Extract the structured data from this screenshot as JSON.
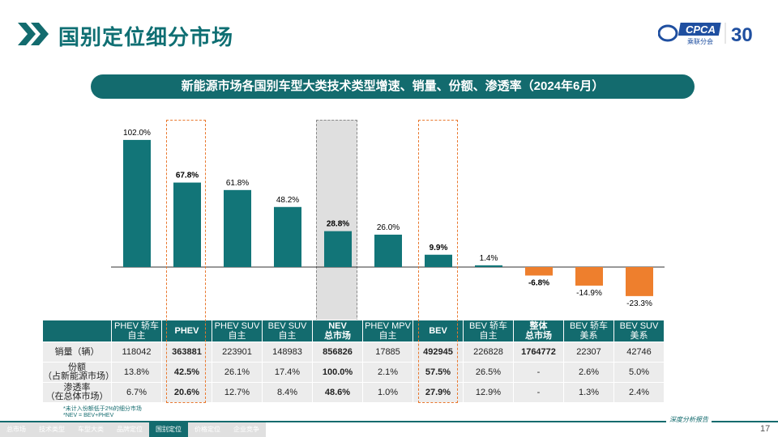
{
  "header": {
    "title": "国别定位细分市场",
    "logo_text": "CPCA",
    "logo_sub": "乘联分会",
    "anniv": "30"
  },
  "banner": "新能源市场各国别车型大类技术类型增速、销量、份额、渗透率（2024年6月）",
  "chart_data": {
    "type": "bar",
    "categories": [
      "PHEV 轿车 自主",
      "PHEV",
      "PHEV SUV 自主",
      "BEV SUV 自主",
      "NEV 总市场",
      "PHEV MPV 自主",
      "BEV",
      "BEV 轿车 自主",
      "整体 总市场",
      "BEV 轿车 美系",
      "BEV SUV 美系"
    ],
    "values": [
      102.0,
      67.8,
      61.8,
      48.2,
      28.8,
      26.0,
      9.9,
      1.4,
      -6.8,
      -14.9,
      -23.3
    ],
    "labels": [
      "102.0%",
      "67.8%",
      "61.8%",
      "48.2%",
      "28.8%",
      "26.0%",
      "9.9%",
      "1.4%",
      "-6.8%",
      "-14.9%",
      "-23.3%"
    ],
    "bold": [
      false,
      true,
      false,
      false,
      true,
      false,
      true,
      false,
      true,
      false,
      false
    ],
    "colors": {
      "positive": "#127578",
      "negative": "#ee7f2d"
    }
  },
  "table": {
    "headers": [
      [
        "PHEV 轿车",
        "自主"
      ],
      [
        "PHEV",
        ""
      ],
      [
        "PHEV  SUV",
        "自主"
      ],
      [
        "BEV SUV",
        "自主"
      ],
      [
        "NEV",
        "总市场"
      ],
      [
        "PHEV  MPV",
        "自主"
      ],
      [
        "BEV",
        ""
      ],
      [
        "BEV 轿车",
        "自主"
      ],
      [
        "整体",
        "总市场"
      ],
      [
        "BEV 轿车",
        "美系"
      ],
      [
        "BEV SUV",
        "美系"
      ]
    ],
    "row_labels": [
      [
        "销量（辆）",
        ""
      ],
      [
        "份额",
        "（占新能源市场）"
      ],
      [
        "渗透率",
        "（在总体市场）"
      ]
    ],
    "rows": [
      [
        "118042",
        "363881",
        "223901",
        "148983",
        "856826",
        "17885",
        "492945",
        "226828",
        "1764772",
        "22307",
        "42746"
      ],
      [
        "13.8%",
        "42.5%",
        "26.1%",
        "17.4%",
        "100.0%",
        "2.1%",
        "57.5%",
        "26.5%",
        "-",
        "2.6%",
        "5.0%"
      ],
      [
        "6.7%",
        "20.6%",
        "12.7%",
        "8.4%",
        "48.6%",
        "1.0%",
        "27.9%",
        "12.9%",
        "-",
        "1.3%",
        "2.4%"
      ]
    ]
  },
  "notes": [
    "*未计入份额低于2%的细分市场",
    "*NEV = BEV+PHEV"
  ],
  "nav": [
    "总市场",
    "技术类型",
    "车型大类",
    "品牌定位",
    "国别定位",
    "价格定位",
    "企业竞争"
  ],
  "nav_active": 4,
  "footer": {
    "report": "深度分析报告",
    "page": "17"
  }
}
